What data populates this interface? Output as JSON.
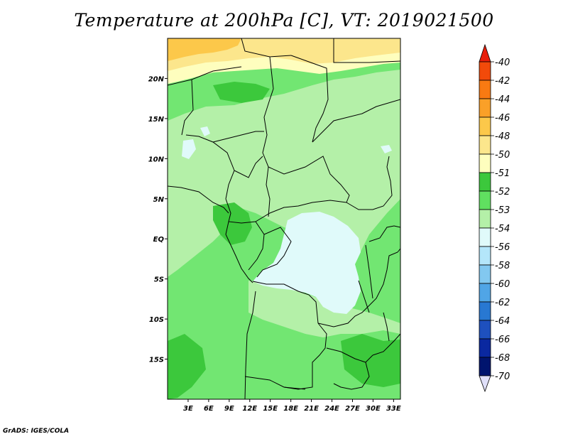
{
  "title": "Temperature at 200hPa [C], VT: 2019021500",
  "credit": "GrADS: IGES/COLA",
  "map": {
    "lon_range": [
      0,
      34
    ],
    "lat_range": [
      -20,
      25
    ],
    "lat_ticks": [
      {
        "value": 20,
        "label": "20N"
      },
      {
        "value": 15,
        "label": "15N"
      },
      {
        "value": 10,
        "label": "10N"
      },
      {
        "value": 5,
        "label": "5N"
      },
      {
        "value": 0,
        "label": "EQ"
      },
      {
        "value": -5,
        "label": "5S"
      },
      {
        "value": -10,
        "label": "10S"
      },
      {
        "value": -15,
        "label": "15S"
      }
    ],
    "lon_ticks": [
      {
        "value": 3,
        "label": "3E"
      },
      {
        "value": 6,
        "label": "6E"
      },
      {
        "value": 9,
        "label": "9E"
      },
      {
        "value": 12,
        "label": "12E"
      },
      {
        "value": 15,
        "label": "15E"
      },
      {
        "value": 18,
        "label": "18E"
      },
      {
        "value": 21,
        "label": "21E"
      },
      {
        "value": 24,
        "label": "24E"
      },
      {
        "value": 27,
        "label": "27E"
      },
      {
        "value": 30,
        "label": "30E"
      },
      {
        "value": 33,
        "label": "33E"
      }
    ]
  },
  "colorbar": {
    "labels": [
      "-40",
      "-42",
      "-44",
      "-46",
      "-48",
      "-50",
      "-51",
      "-52",
      "-53",
      "-54",
      "-56",
      "-58",
      "-60",
      "-62",
      "-64",
      "-66",
      "-68",
      "-70"
    ],
    "colors": [
      "#f01a0a",
      "#f24a0a",
      "#f87a12",
      "#faa028",
      "#fcc84a",
      "#fce68c",
      "#fefebe",
      "#3cc83c",
      "#60e060",
      "#b4f0a8",
      "#e0fafa",
      "#b4e6fa",
      "#82c8f0",
      "#50a5e6",
      "#2878d2",
      "#1e50be",
      "#0a28a0",
      "#00146e"
    ],
    "top_arrow_color": "#e81e0a",
    "bottom_arrow_color": "#e0e0fa"
  },
  "chart_data": {
    "type": "heatmap",
    "title": "Temperature at 200hPa [C], VT: 2019021500",
    "variable": "Temperature",
    "level": "200hPa",
    "units": "C",
    "valid_time": "2019021500",
    "lon_range": [
      0,
      34
    ],
    "lat_range": [
      -20,
      25
    ],
    "levels": [
      -40,
      -42,
      -44,
      -46,
      -48,
      -50,
      -51,
      -52,
      -53,
      -54,
      -56,
      -58,
      -60,
      -62,
      -64,
      -66,
      -68,
      -70
    ],
    "regions": [
      {
        "area": "far north band (~22N-25N)",
        "value_range": "-48 to -50"
      },
      {
        "area": "north (~20N-21N)",
        "value_range": "-50 to -51"
      },
      {
        "area": "sahel and western coast",
        "value_range": "-52 to -53"
      },
      {
        "area": "central basin (~15E-26E, 2N-9S)",
        "value_range": "-53 to -54"
      },
      {
        "area": "southern africa",
        "value_range": "-52 to -53"
      }
    ]
  }
}
